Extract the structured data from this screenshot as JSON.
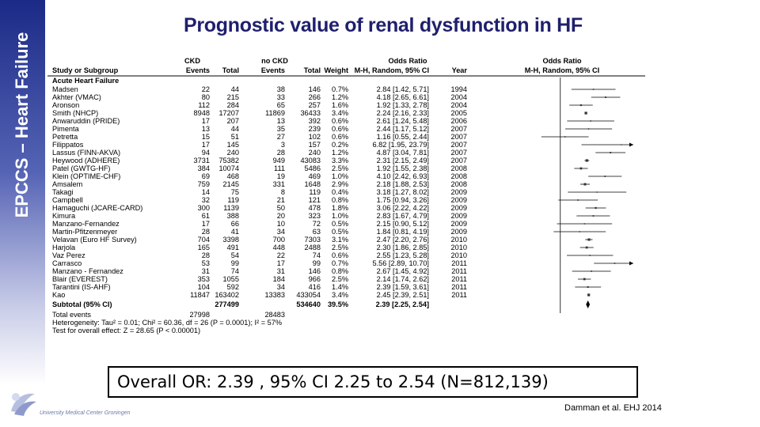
{
  "slide": {
    "sidebar_title": "EPCCS – Heart Failure",
    "title": "Prognostic value of renal dysfunction in HF",
    "summary_box": "Overall OR: 2.39 , 95% CI 2.25 to 2.54 (N=812,139)",
    "citation": "Damman  et al.  EHJ 2014",
    "logo_text": "University Medical Center Groningen",
    "colors": {
      "sidebar_top": "#1b2a86",
      "title": "#1f1f6e"
    }
  },
  "chart_data": {
    "type": "forest",
    "title": "",
    "headers": {
      "ckd": "CKD",
      "nockd": "no CKD",
      "odds_ratio_1": "Odds Ratio",
      "odds_ratio_2": "Odds Ratio",
      "study": "Study or Subgroup",
      "events": "Events",
      "total": "Total",
      "events2": "Events",
      "total2": "Total",
      "weight": "Weight",
      "method_1": "M-H, Random, 95% CI",
      "year": "Year",
      "method_2": "M-H, Random, 95% CI"
    },
    "group": "Acute Heart Failure",
    "x_scale": "log",
    "xlim": [
      0.5,
      10
    ],
    "null_value": 1,
    "studies": [
      {
        "name": "Madsen",
        "ckd_events": "22",
        "ckd_total": "44",
        "nockd_events": "38",
        "nockd_total": "146",
        "weight": "0.7%",
        "ci_text": "2.84 [1.42, 5.71]",
        "year": "1994",
        "or": 2.84,
        "lo": 1.42,
        "hi": 5.71
      },
      {
        "name": "Akhter (VMAC)",
        "ckd_events": "80",
        "ckd_total": "215",
        "nockd_events": "33",
        "nockd_total": "266",
        "weight": "1.2%",
        "ci_text": "4.18 [2.65, 6.61]",
        "year": "2004",
        "or": 4.18,
        "lo": 2.65,
        "hi": 6.61
      },
      {
        "name": "Aronson",
        "ckd_events": "112",
        "ckd_total": "284",
        "nockd_events": "65",
        "nockd_total": "257",
        "weight": "1.6%",
        "ci_text": "1.92 [1.33, 2.78]",
        "year": "2004",
        "or": 1.92,
        "lo": 1.33,
        "hi": 2.78
      },
      {
        "name": "Smith (NHCP)",
        "ckd_events": "8948",
        "ckd_total": "17207",
        "nockd_events": "11869",
        "nockd_total": "36433",
        "weight": "3.4%",
        "ci_text": "2.24 [2.16, 2.33]",
        "year": "2005",
        "or": 2.24,
        "lo": 2.16,
        "hi": 2.33
      },
      {
        "name": "Anwaruddin (PRIDE)",
        "ckd_events": "17",
        "ckd_total": "207",
        "nockd_events": "13",
        "nockd_total": "392",
        "weight": "0.6%",
        "ci_text": "2.61 [1.24, 5.48]",
        "year": "2006",
        "or": 2.61,
        "lo": 1.24,
        "hi": 5.48
      },
      {
        "name": "Pimenta",
        "ckd_events": "13",
        "ckd_total": "44",
        "nockd_events": "35",
        "nockd_total": "239",
        "weight": "0.6%",
        "ci_text": "2.44 [1.17, 5.12]",
        "year": "2007",
        "or": 2.44,
        "lo": 1.17,
        "hi": 5.12
      },
      {
        "name": "Petretta",
        "ckd_events": "15",
        "ckd_total": "51",
        "nockd_events": "27",
        "nockd_total": "102",
        "weight": "0.6%",
        "ci_text": "1.16 [0.55, 2.44]",
        "year": "2007",
        "or": 1.16,
        "lo": 0.55,
        "hi": 2.44
      },
      {
        "name": "Filippatos",
        "ckd_events": "17",
        "ckd_total": "145",
        "nockd_events": "3",
        "nockd_total": "157",
        "weight": "0.2%",
        "ci_text": "6.82 [1.95, 23.79]",
        "year": "2007",
        "or": 6.82,
        "lo": 1.95,
        "hi": 23.79
      },
      {
        "name": "Lassus (FINN-AKVA)",
        "ckd_events": "94",
        "ckd_total": "240",
        "nockd_events": "28",
        "nockd_total": "240",
        "weight": "1.2%",
        "ci_text": "4.87 [3.04, 7.81]",
        "year": "2007",
        "or": 4.87,
        "lo": 3.04,
        "hi": 7.81
      },
      {
        "name": "Heywood (ADHERE)",
        "ckd_events": "3731",
        "ckd_total": "75382",
        "nockd_events": "949",
        "nockd_total": "43083",
        "weight": "3.3%",
        "ci_text": "2.31 [2.15, 2.49]",
        "year": "2007",
        "or": 2.31,
        "lo": 2.15,
        "hi": 2.49
      },
      {
        "name": "Patel (GWTG-HF)",
        "ckd_events": "384",
        "ckd_total": "10074",
        "nockd_events": "111",
        "nockd_total": "5486",
        "weight": "2.5%",
        "ci_text": "1.92 [1.55, 2.38]",
        "year": "2008",
        "or": 1.92,
        "lo": 1.55,
        "hi": 2.38
      },
      {
        "name": "Klein (OPTIME-CHF)",
        "ckd_events": "69",
        "ckd_total": "468",
        "nockd_events": "19",
        "nockd_total": "469",
        "weight": "1.0%",
        "ci_text": "4.10 [2.42, 6.93]",
        "year": "2008",
        "or": 4.1,
        "lo": 2.42,
        "hi": 6.93
      },
      {
        "name": "Amsalem",
        "ckd_events": "759",
        "ckd_total": "2145",
        "nockd_events": "331",
        "nockd_total": "1648",
        "weight": "2.9%",
        "ci_text": "2.18 [1.88, 2.53]",
        "year": "2008",
        "or": 2.18,
        "lo": 1.88,
        "hi": 2.53
      },
      {
        "name": "Takagi",
        "ckd_events": "14",
        "ckd_total": "75",
        "nockd_events": "8",
        "nockd_total": "119",
        "weight": "0.4%",
        "ci_text": "3.18 [1.27, 8.02]",
        "year": "2009",
        "or": 3.18,
        "lo": 1.27,
        "hi": 8.02
      },
      {
        "name": "Campbell",
        "ckd_events": "32",
        "ckd_total": "119",
        "nockd_events": "21",
        "nockd_total": "121",
        "weight": "0.8%",
        "ci_text": "1.75 [0.94, 3.26]",
        "year": "2009",
        "or": 1.75,
        "lo": 0.94,
        "hi": 3.26
      },
      {
        "name": "Hamaguchi (JCARE-CARD)",
        "ckd_events": "300",
        "ckd_total": "1139",
        "nockd_events": "50",
        "nockd_total": "478",
        "weight": "1.8%",
        "ci_text": "3.06 [2.22, 4.22]",
        "year": "2009",
        "or": 3.06,
        "lo": 2.22,
        "hi": 4.22
      },
      {
        "name": "Kimura",
        "ckd_events": "61",
        "ckd_total": "388",
        "nockd_events": "20",
        "nockd_total": "323",
        "weight": "1.0%",
        "ci_text": "2.83 [1.67, 4.79]",
        "year": "2009",
        "or": 2.83,
        "lo": 1.67,
        "hi": 4.79
      },
      {
        "name": "Manzano-Fernandez",
        "ckd_events": "17",
        "ckd_total": "66",
        "nockd_events": "10",
        "nockd_total": "72",
        "weight": "0.5%",
        "ci_text": "2.15 [0.90, 5.12]",
        "year": "2009",
        "or": 2.15,
        "lo": 0.9,
        "hi": 5.12
      },
      {
        "name": "Martin-Pfitzenmeyer",
        "ckd_events": "28",
        "ckd_total": "41",
        "nockd_events": "34",
        "nockd_total": "63",
        "weight": "0.5%",
        "ci_text": "1.84 [0.81, 4.19]",
        "year": "2009",
        "or": 1.84,
        "lo": 0.81,
        "hi": 4.19
      },
      {
        "name": "Velavan (Euro HF Survey)",
        "ckd_events": "704",
        "ckd_total": "3398",
        "nockd_events": "700",
        "nockd_total": "7303",
        "weight": "3.1%",
        "ci_text": "2.47 [2.20, 2.76]",
        "year": "2010",
        "or": 2.47,
        "lo": 2.2,
        "hi": 2.76
      },
      {
        "name": "Harjola",
        "ckd_events": "165",
        "ckd_total": "491",
        "nockd_events": "448",
        "nockd_total": "2488",
        "weight": "2.5%",
        "ci_text": "2.30 [1.86, 2.85]",
        "year": "2010",
        "or": 2.3,
        "lo": 1.86,
        "hi": 2.85
      },
      {
        "name": "Vaz Perez",
        "ckd_events": "28",
        "ckd_total": "54",
        "nockd_events": "22",
        "nockd_total": "74",
        "weight": "0.6%",
        "ci_text": "2.55 [1.23, 5.28]",
        "year": "2010",
        "or": 2.55,
        "lo": 1.23,
        "hi": 5.28
      },
      {
        "name": "Carrasco",
        "ckd_events": "53",
        "ckd_total": "99",
        "nockd_events": "17",
        "nockd_total": "99",
        "weight": "0.7%",
        "ci_text": "5.56 [2.89, 10.70]",
        "year": "2011",
        "or": 5.56,
        "lo": 2.89,
        "hi": 10.7
      },
      {
        "name": "Manzano - Fernandez",
        "ckd_events": "31",
        "ckd_total": "74",
        "nockd_events": "31",
        "nockd_total": "146",
        "weight": "0.8%",
        "ci_text": "2.67 [1.45, 4.92]",
        "year": "2011",
        "or": 2.67,
        "lo": 1.45,
        "hi": 4.92
      },
      {
        "name": "Blair (EVEREST)",
        "ckd_events": "353",
        "ckd_total": "1055",
        "nockd_events": "184",
        "nockd_total": "966",
        "weight": "2.5%",
        "ci_text": "2.14 [1.74, 2.62]",
        "year": "2011",
        "or": 2.14,
        "lo": 1.74,
        "hi": 2.62
      },
      {
        "name": "Tarantini (IS-AHF)",
        "ckd_events": "104",
        "ckd_total": "592",
        "nockd_events": "34",
        "nockd_total": "416",
        "weight": "1.4%",
        "ci_text": "2.39 [1.59, 3.61]",
        "year": "2011",
        "or": 2.39,
        "lo": 1.59,
        "hi": 3.61
      },
      {
        "name": "Kao",
        "ckd_events": "11847",
        "ckd_total": "163402",
        "nockd_events": "13383",
        "nockd_total": "433054",
        "weight": "3.4%",
        "ci_text": "2.45 [2.39, 2.51]",
        "year": "2011",
        "or": 2.45,
        "lo": 2.39,
        "hi": 2.51
      }
    ],
    "subtotal": {
      "name": "Subtotal (95% CI)",
      "ckd_total": "277499",
      "nockd_total": "534640",
      "weight": "39.5%",
      "ci_text": "2.39 [2.25, 2.54]",
      "or": 2.39,
      "lo": 2.25,
      "hi": 2.54
    },
    "total_events": {
      "label": "Total events",
      "ckd": "27998",
      "nockd": "28483"
    },
    "heterogeneity": "Heterogeneity: Tau² = 0.01; Chi² = 60.36, df = 26 (P = 0.0001); I² = 57%",
    "overall_effect": "Test for overall effect: Z = 28.65 (P < 0.00001)"
  }
}
